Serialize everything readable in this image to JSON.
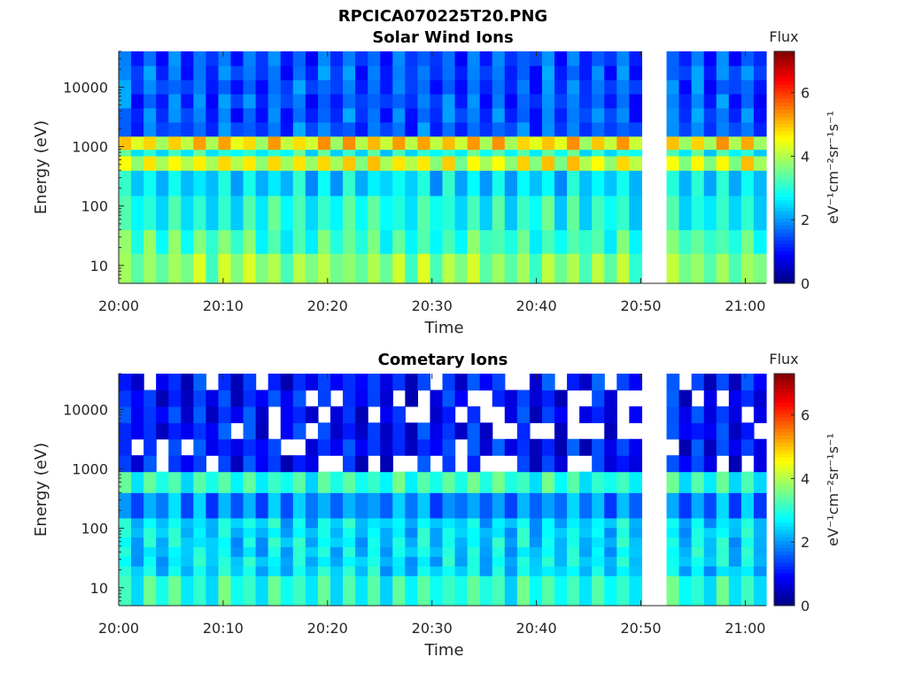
{
  "figure_title": "RPCICA070225T20.PNG",
  "chart_data": [
    {
      "type": "heatmap",
      "title": "Solar Wind Ions",
      "xlabel": "Time",
      "ylabel": "Energy (eV)",
      "y_scale": "log",
      "ylim": [
        5,
        40000
      ],
      "xlim": [
        "20:00",
        "21:02"
      ],
      "x_ticks": [
        "20:00",
        "20:10",
        "20:20",
        "20:30",
        "20:40",
        "20:50",
        "21:00"
      ],
      "y_ticks": [
        "10",
        "100",
        "1000",
        "10000"
      ],
      "colorbar": {
        "label": "Flux",
        "unit": "eV⁻¹cm⁻²sr⁻¹s⁻¹",
        "ticks": [
          "0",
          "2",
          "4",
          "6"
        ],
        "range": [
          0,
          7.3
        ],
        "colormap": "jet"
      },
      "data_gaps": [
        [
          "20:50",
          "20:53"
        ]
      ],
      "bands": [
        {
          "energy_range_eV": [
            5,
            16
          ],
          "flux": 3.7
        },
        {
          "energy_range_eV": [
            16,
            40
          ],
          "flux": 3.2
        },
        {
          "energy_range_eV": [
            40,
            150
          ],
          "flux": 2.9
        },
        {
          "energy_range_eV": [
            150,
            400
          ],
          "flux": 2.5
        },
        {
          "energy_range_eV": [
            400,
            700
          ],
          "flux": 4.3
        },
        {
          "energy_range_eV": [
            700,
            900
          ],
          "flux": 2.9
        },
        {
          "energy_range_eV": [
            900,
            1500
          ],
          "flux": 4.6
        },
        {
          "energy_range_eV": [
            1500,
            40000
          ],
          "flux": 1.5
        }
      ]
    },
    {
      "type": "heatmap",
      "title": "Cometary Ions",
      "xlabel": "Time",
      "ylabel": "Energy (eV)",
      "y_scale": "log",
      "ylim": [
        5,
        40000
      ],
      "xlim": [
        "20:00",
        "21:02"
      ],
      "x_ticks": [
        "20:00",
        "20:10",
        "20:20",
        "20:30",
        "20:40",
        "20:50",
        "21:00"
      ],
      "y_ticks": [
        "10",
        "100",
        "1000",
        "10000"
      ],
      "colorbar": {
        "label": "Flux",
        "unit": "eV⁻¹cm⁻²sr⁻¹s⁻¹",
        "ticks": [
          "0",
          "2",
          "4",
          "6"
        ],
        "range": [
          0,
          7.3
        ],
        "colormap": "jet"
      },
      "data_gaps": [
        [
          "20:50",
          "20:53"
        ]
      ],
      "bands": [
        {
          "energy_range_eV": [
            5,
            16
          ],
          "flux": 3.0
        },
        {
          "energy_range_eV": [
            16,
            150
          ],
          "flux": 2.5
        },
        {
          "energy_range_eV": [
            150,
            400
          ],
          "flux": 1.9
        },
        {
          "energy_range_eV": [
            400,
            900
          ],
          "flux": 3.0
        },
        {
          "energy_range_eV": [
            900,
            40000
          ],
          "flux": 1.0
        }
      ]
    }
  ]
}
